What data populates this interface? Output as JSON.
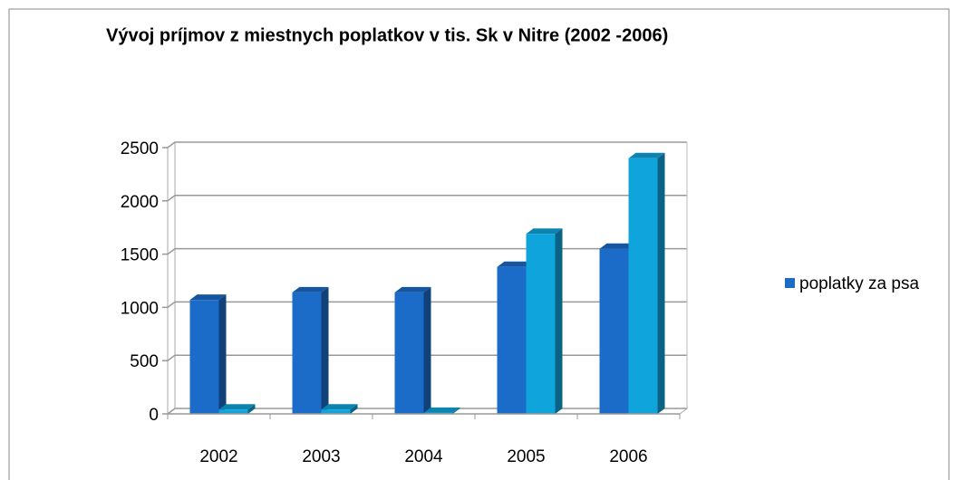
{
  "chart_data": {
    "type": "bar3d",
    "title": "Vývoj príjmov z miestnych poplatkov v tis. Sk v Nitre (2002 -2006)",
    "categories": [
      "2002",
      "2003",
      "2004",
      "2005",
      "2006"
    ],
    "series": [
      {
        "name": "poplatky za psa",
        "color": "#1b6cc8",
        "values": [
          1070,
          1140,
          1140,
          1380,
          1550
        ]
      },
      {
        "color": "#10a4dc",
        "values": [
          40,
          40,
          10,
          1690,
          2400
        ]
      }
    ],
    "ylim": [
      0,
      2500
    ],
    "yticks": [
      0,
      500,
      1000,
      1500,
      2000,
      2500
    ],
    "grid": true,
    "legend": "right"
  }
}
